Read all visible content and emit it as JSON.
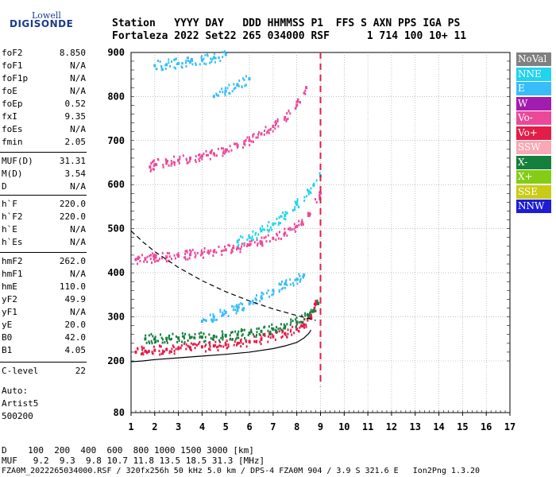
{
  "logo": {
    "line1": "Lowell",
    "line2": "DIGISONDE"
  },
  "header": {
    "line1": "Station   YYYY DAY   DDD HHMMSS P1  FFS S AXN PPS IGA PS",
    "line2": "Fortaleza 2022 Set22 265 034000 RSF      1 714 100 10+ 11"
  },
  "params_group1": [
    {
      "key": "foF2",
      "value": "8.850"
    },
    {
      "key": "foF1",
      "value": "N/A"
    },
    {
      "key": "foF1p",
      "value": "N/A"
    },
    {
      "key": "foE",
      "value": "N/A"
    },
    {
      "key": "foEp",
      "value": "0.52"
    },
    {
      "key": "fxI",
      "value": "9.35"
    },
    {
      "key": "foEs",
      "value": "N/A"
    },
    {
      "key": "fmin",
      "value": "2.05"
    }
  ],
  "params_group2": [
    {
      "key": "MUF(D)",
      "value": "31.31"
    },
    {
      "key": "M(D)",
      "value": "3.54"
    },
    {
      "key": "D",
      "value": "N/A"
    }
  ],
  "params_group3": [
    {
      "key": "h`F",
      "value": "220.0"
    },
    {
      "key": "h`F2",
      "value": "220.0"
    },
    {
      "key": "h`E",
      "value": "N/A"
    },
    {
      "key": "h`Es",
      "value": "N/A"
    }
  ],
  "params_group4": [
    {
      "key": "hmF2",
      "value": "262.0"
    },
    {
      "key": "hmF1",
      "value": "N/A"
    },
    {
      "key": "hmE",
      "value": "110.0"
    },
    {
      "key": "yF2",
      "value": "49.9"
    },
    {
      "key": "yF1",
      "value": "N/A"
    },
    {
      "key": "yE",
      "value": "20.0"
    },
    {
      "key": "B0",
      "value": "42.0"
    },
    {
      "key": "B1",
      "value": "4.05"
    }
  ],
  "clevel": {
    "key": "C-level",
    "value": "22"
  },
  "autoscale": {
    "line1": "Auto:",
    "line2": "Artist5",
    "line3": "500200"
  },
  "legend": [
    {
      "label": "NoVal",
      "color": "#808080"
    },
    {
      "label": "NNE",
      "color": "#22d3ee"
    },
    {
      "label": "E",
      "color": "#38bdf8"
    },
    {
      "label": "W",
      "color": "#a21caf"
    },
    {
      "label": "Vo-",
      "color": "#ec4899"
    },
    {
      "label": "Vo+",
      "color": "#e11d48"
    },
    {
      "label": "SSW",
      "color": "#f9a8b4"
    },
    {
      "label": "X-",
      "color": "#15803d"
    },
    {
      "label": "X+",
      "color": "#84cc16"
    },
    {
      "label": "SSE",
      "color": "#c8cc16"
    },
    {
      "label": "NNW",
      "color": "#1d1dd6"
    }
  ],
  "bottom": {
    "d_line": "D    100  200  400  600  800 1000 1500 3000 [km]",
    "muf_line": "MUF   9.2  9.3  9.8 10.7 11.8 13.5 18.5 31.3 [MHz]",
    "footer": "FZA0M_2022265034000.RSF / 320fx256h 50 kHz 5.0 km / DPS-4 FZA0M 904 / 3.9 S 321.6 E   Ion2Png 1.3.20"
  },
  "chart_data": {
    "type": "scatter",
    "x_ticks": [
      "1",
      "2",
      "3",
      "4",
      "5",
      "6",
      "7",
      "8",
      "9",
      "10",
      "11",
      "12",
      "13",
      "14",
      "15",
      "16",
      "17"
    ],
    "y_ticks": [
      "80",
      "200",
      "300",
      "400",
      "500",
      "600",
      "700",
      "800",
      "900"
    ],
    "xlim": [
      1,
      17
    ],
    "ylim": [
      80,
      900
    ],
    "grid": true,
    "legend_position": "right",
    "traces": [
      {
        "mode": "Vo+",
        "x": [
          1.2,
          1.6,
          2.0,
          2.5,
          3.0,
          3.5,
          4.0,
          4.5,
          5.0,
          5.5,
          6.0,
          6.5,
          7.0,
          7.5,
          8.0,
          8.3,
          8.6,
          8.8
        ],
        "y": [
          220,
          222,
          224,
          226,
          228,
          230,
          232,
          234,
          237,
          240,
          244,
          249,
          255,
          262,
          272,
          282,
          300,
          330
        ]
      },
      {
        "mode": "X-",
        "x": [
          1.6,
          2.0,
          2.5,
          3.0,
          3.5,
          4.0,
          4.5,
          5.0,
          5.5,
          6.0,
          6.5,
          7.0,
          7.5,
          8.0,
          8.5,
          8.9
        ],
        "y": [
          250,
          250,
          251,
          252,
          253,
          254,
          256,
          258,
          260,
          263,
          267,
          272,
          278,
          288,
          302,
          330
        ]
      },
      {
        "mode": "E",
        "x": [
          4.0,
          4.5,
          5.0,
          5.5,
          6.0,
          6.5,
          7.0,
          7.5,
          8.0,
          8.3
        ],
        "y": [
          290,
          300,
          310,
          320,
          330,
          345,
          360,
          375,
          385,
          395
        ]
      },
      {
        "mode": "Vo-",
        "x": [
          1.2,
          1.6,
          2.0,
          2.5,
          3.0,
          3.5,
          4.0,
          4.5,
          5.0,
          5.5,
          6.0,
          6.5,
          7.0,
          7.5,
          8.0,
          8.5,
          9.0
        ],
        "y": [
          430,
          432,
          434,
          436,
          438,
          441,
          444,
          448,
          452,
          457,
          463,
          470,
          478,
          490,
          505,
          530,
          580
        ]
      },
      {
        "mode": "NNE",
        "x": [
          5.5,
          6.0,
          6.5,
          7.0,
          7.5,
          8.0,
          8.5,
          9.0
        ],
        "y": [
          470,
          480,
          495,
          510,
          530,
          555,
          585,
          620
        ]
      },
      {
        "mode": "Vo-",
        "x": [
          1.8,
          2.0,
          2.5,
          3.0,
          3.5,
          4.0,
          4.5,
          5.0,
          5.5,
          6.0,
          6.5,
          7.0,
          7.5,
          8.0,
          8.4
        ],
        "y": [
          640,
          645,
          650,
          655,
          660,
          665,
          670,
          678,
          688,
          700,
          715,
          732,
          752,
          780,
          820
        ]
      },
      {
        "mode": "E",
        "x": [
          2.0,
          2.5,
          3.0,
          3.5,
          4.0,
          4.5,
          5.0
        ],
        "y": [
          870,
          872,
          875,
          878,
          882,
          888,
          895
        ]
      },
      {
        "mode": "E",
        "x": [
          4.5,
          5.0,
          5.5,
          6.0
        ],
        "y": [
          800,
          812,
          826,
          840
        ]
      }
    ],
    "model_curves": [
      {
        "name": "profile",
        "style": "solid",
        "x": [
          1.0,
          1.5,
          2.0,
          3.0,
          4.0,
          5.0,
          6.0,
          7.0,
          7.5,
          8.0,
          8.3,
          8.5,
          8.6
        ],
        "y": [
          198,
          200,
          203,
          207,
          211,
          215,
          220,
          228,
          234,
          242,
          252,
          262,
          270
        ]
      },
      {
        "name": "muf-curve",
        "style": "dashed",
        "x": [
          1.0,
          1.5,
          2.0,
          3.0,
          4.0,
          5.0,
          6.0,
          7.0,
          8.0,
          8.8
        ],
        "y": [
          495,
          470,
          448,
          412,
          382,
          357,
          336,
          318,
          303,
          292
        ]
      }
    ],
    "markers": [
      {
        "name": "foF2-line",
        "mode": "Vo+",
        "x": 9.0,
        "y_range": [
          140,
          900
        ]
      }
    ]
  }
}
